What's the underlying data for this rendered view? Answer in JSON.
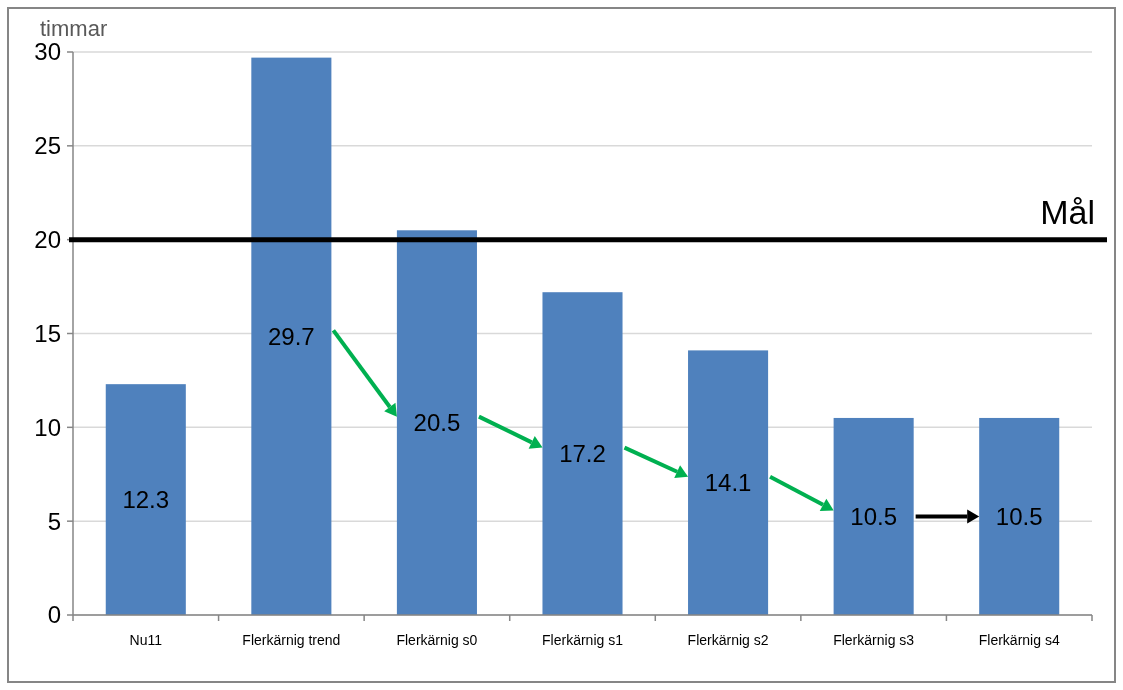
{
  "chart_data": {
    "type": "bar",
    "ylabel": "timmar",
    "categories": [
      "Nu11",
      "Flerkärnig trend",
      "Flerkärnig s0",
      "Flerkärnig s1",
      "Flerkärnig s2",
      "Flerkärnig s3",
      "Flerkärnig s4"
    ],
    "values": [
      12.3,
      29.7,
      20.5,
      17.2,
      14.1,
      10.5,
      10.5
    ],
    "color": "#4f81bd",
    "ylim": [
      0,
      30
    ],
    "yticks": [
      0,
      5,
      10,
      15,
      20,
      25,
      30
    ],
    "grid": "y",
    "data_labels": true,
    "ref_lines": [
      {
        "axis": "y",
        "value": 20,
        "label": "Mål",
        "color": "#000000"
      }
    ]
  }
}
